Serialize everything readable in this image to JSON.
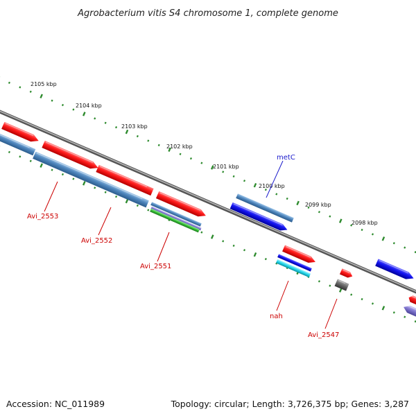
{
  "title": "Agrobacterium vitis S4 chromosome 1, complete genome",
  "footer": {
    "accession": "Accession: NC_011989",
    "summary": "Topology: circular; Length: 3,726,375 bp; Genes: 3,287"
  },
  "ticks": [
    "2105 kbp",
    "2104 kbp",
    "2103 kbp",
    "2102 kbp",
    "2101 kbp",
    "2100 kbp",
    "2099 kbp",
    "2098 kbp"
  ],
  "gene_labels": [
    "metC",
    "Avi_2553",
    "Avi_2552",
    "Avi_2551",
    "nah",
    "Avi_2547"
  ],
  "colors": {
    "backbone": "#8c8c8c",
    "scale_dots": "#2e8b2e",
    "cds_red": "#e8141c",
    "cds_blue": "#1a1ae6",
    "cds_steel": "#4f86bd",
    "cds_green": "#3ab53a",
    "cds_cyan": "#29d0e0",
    "cds_gray": "#666666",
    "cds_purple": "#7d73cc",
    "label_red": "#cc0000",
    "label_blue": "#1a1acc"
  }
}
